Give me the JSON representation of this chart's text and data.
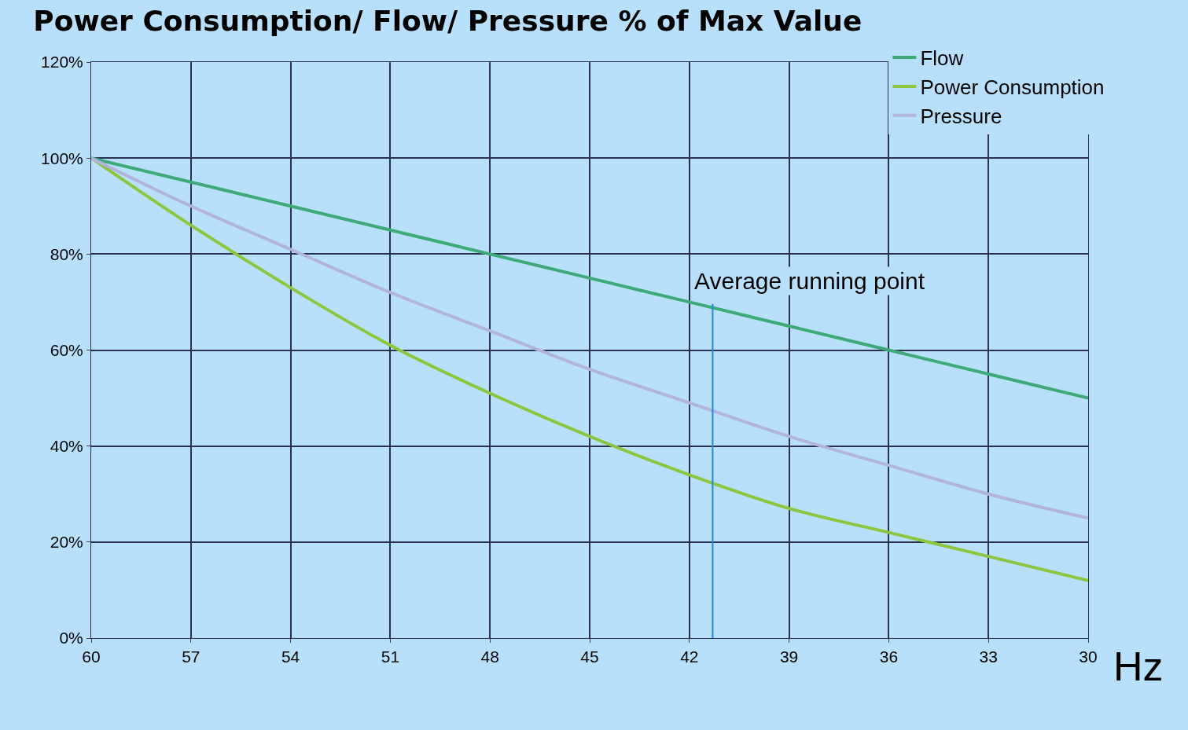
{
  "chart_data": {
    "type": "line",
    "title": "Power Consumption/ Flow/ Pressure % of Max Value",
    "xlabel": "Hz",
    "x": [
      60,
      57,
      54,
      51,
      48,
      45,
      42,
      39,
      36,
      33,
      30
    ],
    "xlim": [
      60,
      30
    ],
    "xticks": [
      60,
      57,
      54,
      51,
      48,
      45,
      42,
      39,
      36,
      33,
      30
    ],
    "ylim": [
      0,
      120
    ],
    "yticks": [
      {
        "value": 0,
        "label": "0%"
      },
      {
        "value": 20,
        "label": "20%"
      },
      {
        "value": 40,
        "label": "40%"
      },
      {
        "value": 60,
        "label": "60%"
      },
      {
        "value": 80,
        "label": "80%"
      },
      {
        "value": 100,
        "label": "100%"
      },
      {
        "value": 120,
        "label": "120%"
      }
    ],
    "series": [
      {
        "name": "Flow",
        "color": "#3daa78",
        "values": [
          100,
          95,
          90,
          85,
          80,
          75,
          70,
          65,
          60,
          55,
          50
        ]
      },
      {
        "name": "Power Consumption",
        "color": "#8cc63f",
        "values": [
          100,
          86,
          73,
          61,
          51,
          42,
          34,
          27,
          22,
          17,
          12
        ]
      },
      {
        "name": "Pressure",
        "color": "#b3b3e0",
        "values": [
          100,
          90,
          81,
          72,
          64,
          56,
          49,
          42,
          36,
          30,
          25
        ]
      }
    ],
    "ref_lines": [
      {
        "axis": "x",
        "value": 41.3,
        "label": "Average running point",
        "color": "#1e88e5"
      }
    ],
    "grid": true,
    "legend": "top right",
    "marker": "none",
    "line_style": "solid"
  }
}
